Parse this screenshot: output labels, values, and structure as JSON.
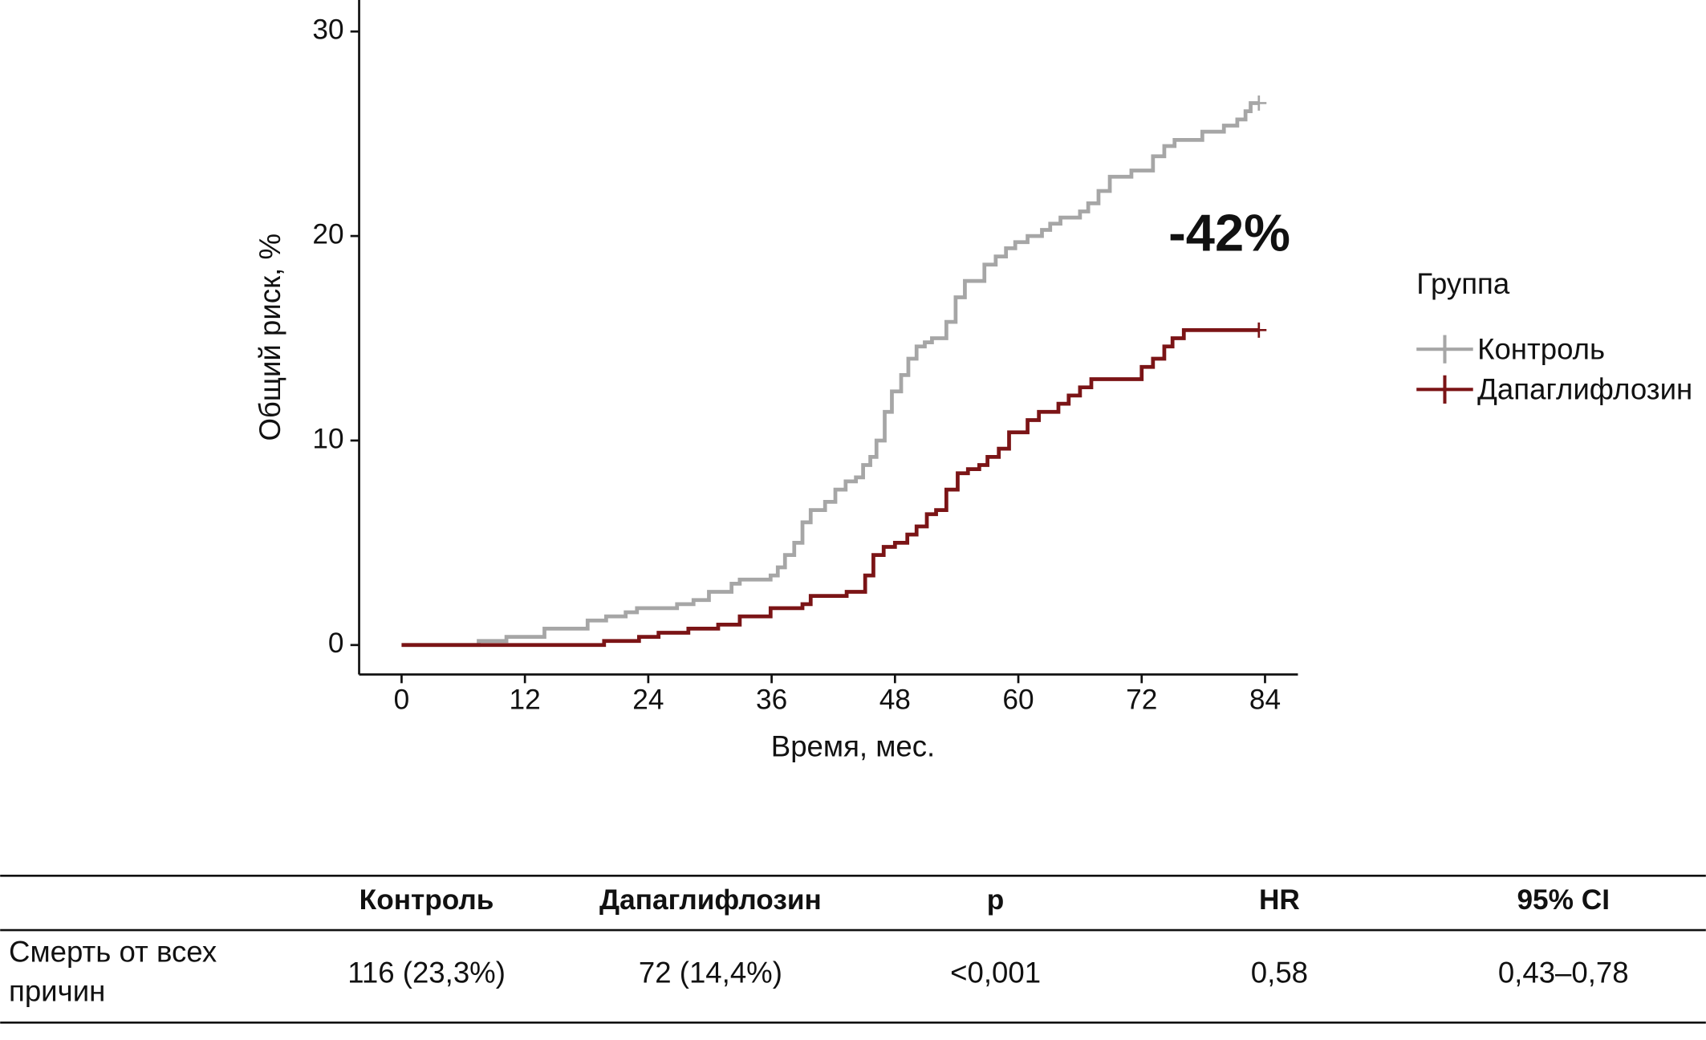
{
  "chart_data": {
    "type": "step",
    "y_label": "Общий риск, %",
    "x_label": "Время, мес.",
    "annotation": "-42%",
    "annotation_color": "#c8202a",
    "legend_title": "Группа",
    "legend": "right",
    "xlim": [
      -4.13,
      87.2
    ],
    "ylim": [
      -1.44,
      31.54
    ],
    "xticks": [
      0,
      12,
      24,
      36,
      48,
      60,
      72,
      84
    ],
    "yticks": [
      0,
      10,
      20,
      30
    ],
    "series": [
      {
        "name": "Контроль",
        "color": "#a6a6a6",
        "x": [
          0,
          7.5,
          10.2,
          13.9,
          18.1,
          19.9,
          21.8,
          22.9,
          26.8,
          28.4,
          29.9,
          32.1,
          32.9,
          35.9,
          36.6,
          37.3,
          38.2,
          39.0,
          39.8,
          41.2,
          42.2,
          43.2,
          44.2,
          44.9,
          45.6,
          46.2,
          47.0,
          47.7,
          48.6,
          49.3,
          50.1,
          50.9,
          51.6,
          53.0,
          53.9,
          54.8,
          56.7,
          57.8,
          58.8,
          59.7,
          60.9,
          62.3,
          63.1,
          64.1,
          66.0,
          66.8,
          67.8,
          68.9,
          71.0,
          73.1,
          74.2,
          75.2,
          77.9,
          80.0,
          81.3,
          82.1,
          82.6,
          83.4
        ],
        "values": [
          0,
          0.2,
          0.4,
          0.8,
          1.2,
          1.4,
          1.6,
          1.8,
          2.0,
          2.2,
          2.6,
          3.0,
          3.2,
          3.4,
          3.8,
          4.4,
          5.0,
          6.0,
          6.6,
          7.0,
          7.6,
          8.0,
          8.2,
          8.8,
          9.2,
          10.0,
          11.4,
          12.4,
          13.2,
          14.0,
          14.6,
          14.8,
          15.0,
          15.8,
          17.0,
          17.8,
          18.6,
          19.0,
          19.4,
          19.7,
          20.0,
          20.3,
          20.6,
          20.9,
          21.2,
          21.6,
          22.2,
          22.9,
          23.2,
          23.9,
          24.4,
          24.7,
          25.1,
          25.4,
          25.7,
          26.1,
          26.5,
          26.5
        ]
      },
      {
        "name": "Дапаглифлозин",
        "color": "#7b1416",
        "x": [
          0,
          19.7,
          23.1,
          25.0,
          27.9,
          30.8,
          32.9,
          35.9,
          39.0,
          39.8,
          43.3,
          45.1,
          45.9,
          46.9,
          48.0,
          49.2,
          50.1,
          51.1,
          52.0,
          53.0,
          54.1,
          55.1,
          56.2,
          57.0,
          58.1,
          59.1,
          60.9,
          62.0,
          63.9,
          64.9,
          66.0,
          67.1,
          72.0,
          73.1,
          74.2,
          75.0,
          76.1,
          83.4
        ],
        "values": [
          0,
          0.2,
          0.4,
          0.6,
          0.8,
          1.0,
          1.4,
          1.8,
          2.0,
          2.4,
          2.6,
          3.4,
          4.4,
          4.8,
          5.0,
          5.4,
          5.8,
          6.4,
          6.6,
          7.6,
          8.4,
          8.6,
          8.8,
          9.2,
          9.6,
          10.4,
          11.0,
          11.4,
          11.8,
          12.2,
          12.6,
          13.0,
          13.6,
          14.0,
          14.6,
          15.0,
          15.4,
          15.4
        ]
      }
    ]
  },
  "table": {
    "columns": [
      "Контроль",
      "Дапаглифлозин",
      "p",
      "HR",
      "95% CI"
    ],
    "rows": [
      {
        "label_lines": [
          "Смерть от всех",
          "причин"
        ],
        "cells": [
          "116 (23,3%)",
          "72 (14,4%)",
          "<0,001",
          "0,58",
          "0,43–0,78"
        ]
      }
    ]
  }
}
